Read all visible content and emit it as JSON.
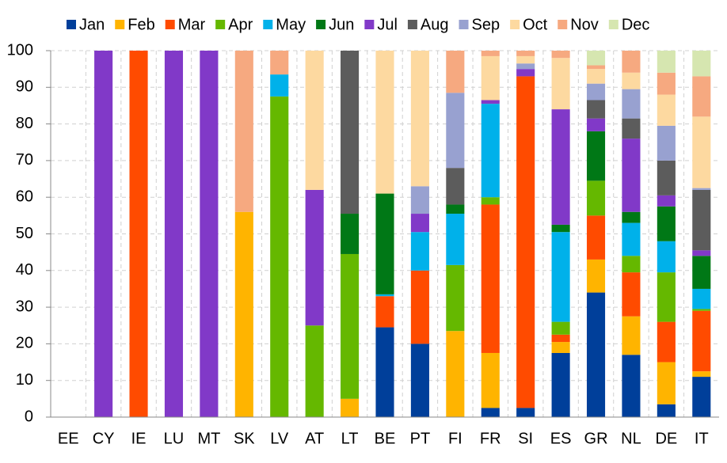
{
  "chart_data": {
    "type": "stacked_bar",
    "categories": [
      "EE",
      "CY",
      "IE",
      "LU",
      "MT",
      "SK",
      "LV",
      "AT",
      "LT",
      "BE",
      "PT",
      "FI",
      "FR",
      "SI",
      "ES",
      "GR",
      "NL",
      "DE",
      "IT"
    ],
    "series": [
      {
        "name": "Jan",
        "color": "#003f9a",
        "values": [
          0,
          0,
          0,
          0,
          0,
          0,
          0,
          0,
          0,
          24.5,
          20,
          0,
          2.5,
          2.5,
          17.5,
          34,
          17,
          3.5,
          11
        ]
      },
      {
        "name": "Feb",
        "color": "#ffb400",
        "values": [
          0,
          0,
          0,
          0,
          0,
          56,
          0,
          0,
          5,
          0,
          0,
          23.5,
          15,
          0,
          3,
          9,
          10.5,
          11.5,
          1.5
        ]
      },
      {
        "name": "Mar",
        "color": "#ff4b00",
        "values": [
          0,
          0,
          100,
          0,
          0,
          0,
          0,
          0,
          0,
          8.5,
          20,
          0,
          40.5,
          90.5,
          2,
          12,
          12,
          11,
          16.5
        ]
      },
      {
        "name": "Apr",
        "color": "#65b800",
        "values": [
          0,
          0,
          0,
          0,
          0,
          0,
          87.5,
          25,
          39.5,
          0,
          0,
          18,
          2,
          0,
          3.5,
          9.5,
          4.5,
          13.5,
          0.5
        ]
      },
      {
        "name": "May",
        "color": "#00b1ea",
        "values": [
          0,
          0,
          0,
          0,
          0,
          0,
          6,
          0,
          0,
          0.5,
          10.5,
          14,
          25.5,
          0,
          24.5,
          0,
          9,
          8.5,
          5.5
        ]
      },
      {
        "name": "Jun",
        "color": "#007816",
        "values": [
          0,
          0,
          0,
          0,
          0,
          0,
          0,
          0,
          11,
          27.5,
          0,
          2.5,
          0,
          0,
          2,
          13.5,
          3,
          9.5,
          9
        ]
      },
      {
        "name": "Jul",
        "color": "#8139c8",
        "values": [
          0,
          100,
          0,
          100,
          100,
          0,
          0,
          37,
          0,
          0,
          5,
          0,
          1,
          2,
          31.5,
          3.5,
          20,
          3,
          1.5
        ]
      },
      {
        "name": "Aug",
        "color": "#5c5c5c",
        "values": [
          0,
          0,
          0,
          0,
          0,
          0,
          0,
          0,
          44.5,
          0,
          0,
          10,
          0,
          0,
          0,
          5,
          5.5,
          9.5,
          16.5
        ]
      },
      {
        "name": "Sep",
        "color": "#98a1d0",
        "values": [
          0,
          0,
          0,
          0,
          0,
          0,
          0,
          0,
          0,
          0,
          7.5,
          20.5,
          0,
          1.5,
          0,
          4.5,
          8,
          9.5,
          0.5
        ]
      },
      {
        "name": "Oct",
        "color": "#fdd9a0",
        "values": [
          0,
          0,
          0,
          0,
          0,
          0,
          0,
          38,
          0,
          39,
          37,
          0,
          12,
          2,
          14,
          4,
          4.5,
          8.5,
          19.5
        ]
      },
      {
        "name": "Nov",
        "color": "#f6a980",
        "values": [
          0,
          0,
          0,
          0,
          0,
          44,
          6.5,
          0,
          0,
          0,
          0,
          11.5,
          1.5,
          1.5,
          2,
          1,
          6,
          6,
          11
        ]
      },
      {
        "name": "Dec",
        "color": "#d6e6b0",
        "values": [
          0,
          0,
          0,
          0,
          0,
          0,
          0,
          0,
          0,
          0,
          0,
          0,
          0,
          0,
          0,
          4,
          0,
          6,
          7
        ]
      }
    ],
    "ylim": [
      0,
      100
    ],
    "yticks": [
      0,
      10,
      20,
      30,
      40,
      50,
      60,
      70,
      80,
      90,
      100
    ],
    "grid": true
  }
}
